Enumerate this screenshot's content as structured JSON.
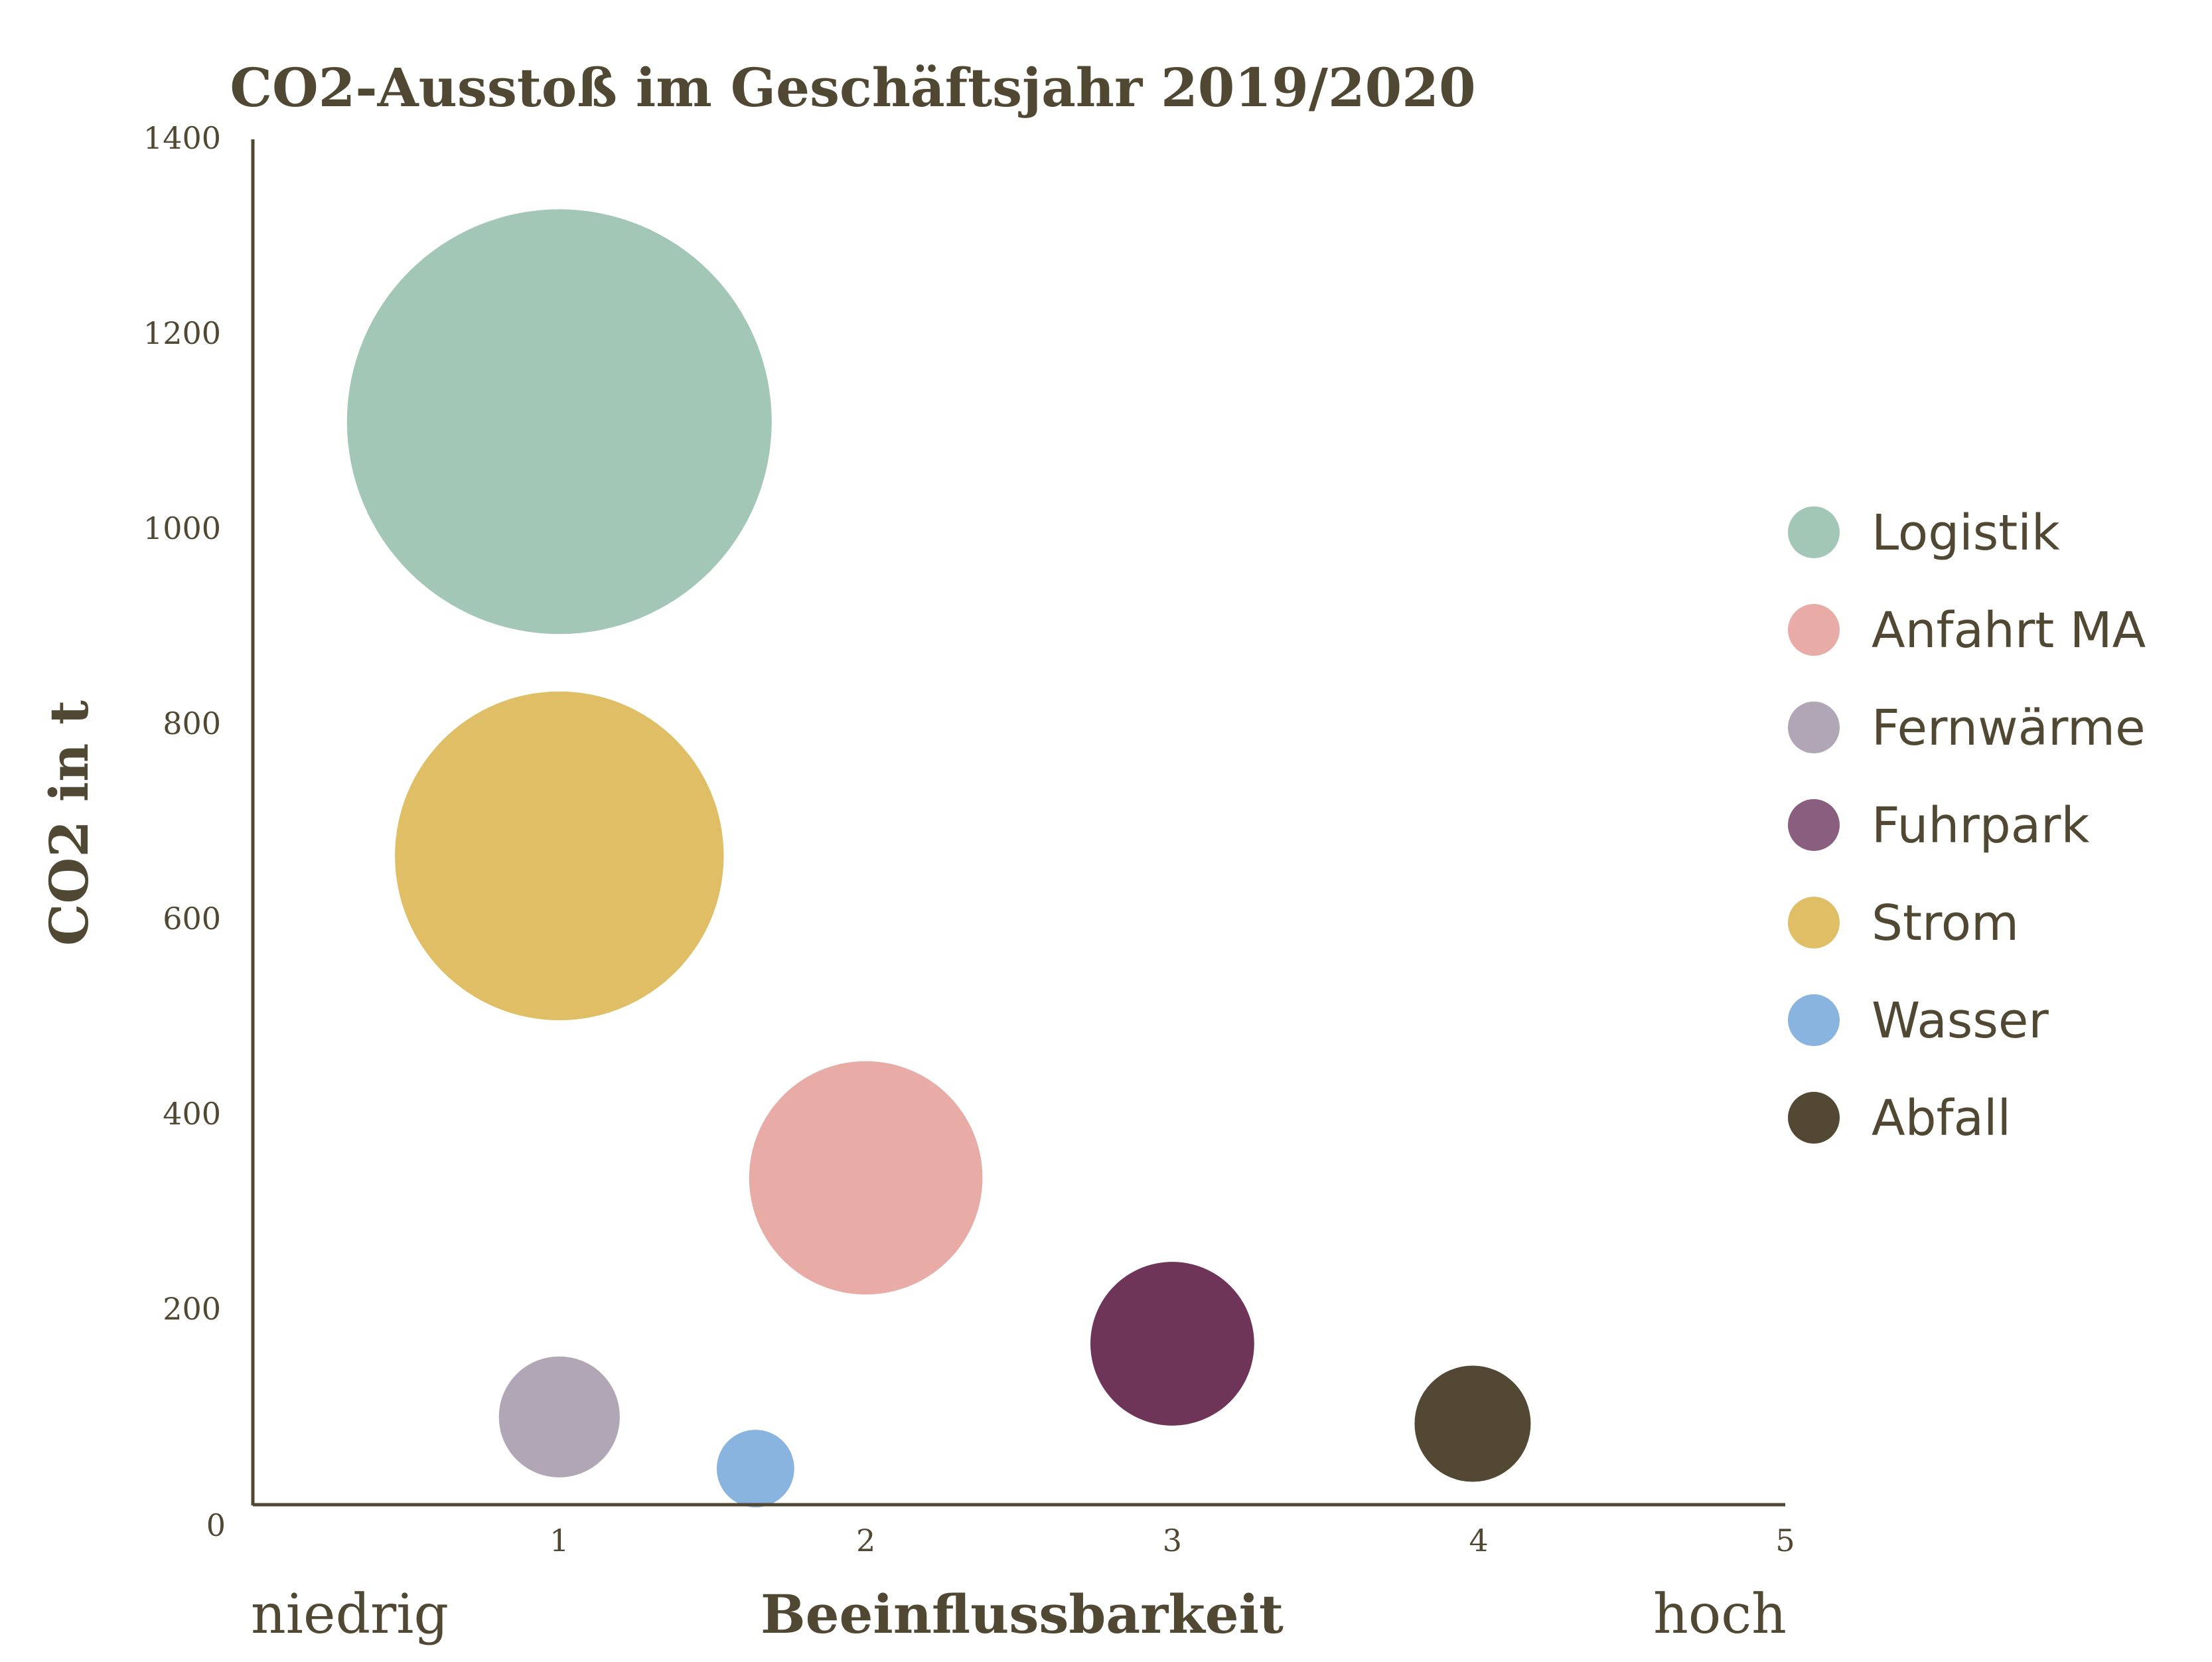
{
  "chart_data": {
    "type": "scatter",
    "subtype": "bubble",
    "title": "CO2-Ausstoß im Geschäftsjahr 2019/2020",
    "xlabel": "Beeinflussbarkeit",
    "ylabel": "CO2 in t",
    "x_low_label": "niedrig",
    "x_high_label": "hoch",
    "xlim": [
      0,
      5
    ],
    "ylim": [
      0,
      1400
    ],
    "x_ticks": [
      "1",
      "2",
      "3",
      "4",
      "5"
    ],
    "y_ticks": [
      "0",
      "200",
      "400",
      "600",
      "800",
      "1000",
      "1200",
      "1400"
    ],
    "grid": false,
    "legend_position": "right",
    "series": [
      {
        "name": "Logistik",
        "x": 1.0,
        "y": 1110,
        "size": 1110,
        "color": "#A3C7B6"
      },
      {
        "name": "Anfahrt MA",
        "x": 2.0,
        "y": 335,
        "size": 335,
        "color": "#E8ABA5"
      },
      {
        "name": "Fernwärme",
        "x": 1.0,
        "y": 90,
        "size": 90,
        "color": "#B0A6B5"
      },
      {
        "name": "Fuhrpark",
        "x": 3.0,
        "y": 165,
        "size": 165,
        "color": "#6E3559"
      },
      {
        "name": "Strom",
        "x": 1.0,
        "y": 665,
        "size": 665,
        "color": "#DFBE66"
      },
      {
        "name": "Wasser",
        "x": 1.64,
        "y": 37,
        "size": 37,
        "color": "#8AB4E0"
      },
      {
        "name": "Abfall",
        "x": 3.98,
        "y": 83,
        "size": 83,
        "color": "#524833"
      }
    ]
  },
  "legend_marker_colors": {
    "Fuhrpark": "#8A5E7E",
    "Abfall": "#524833"
  },
  "axis_color": "#514833"
}
